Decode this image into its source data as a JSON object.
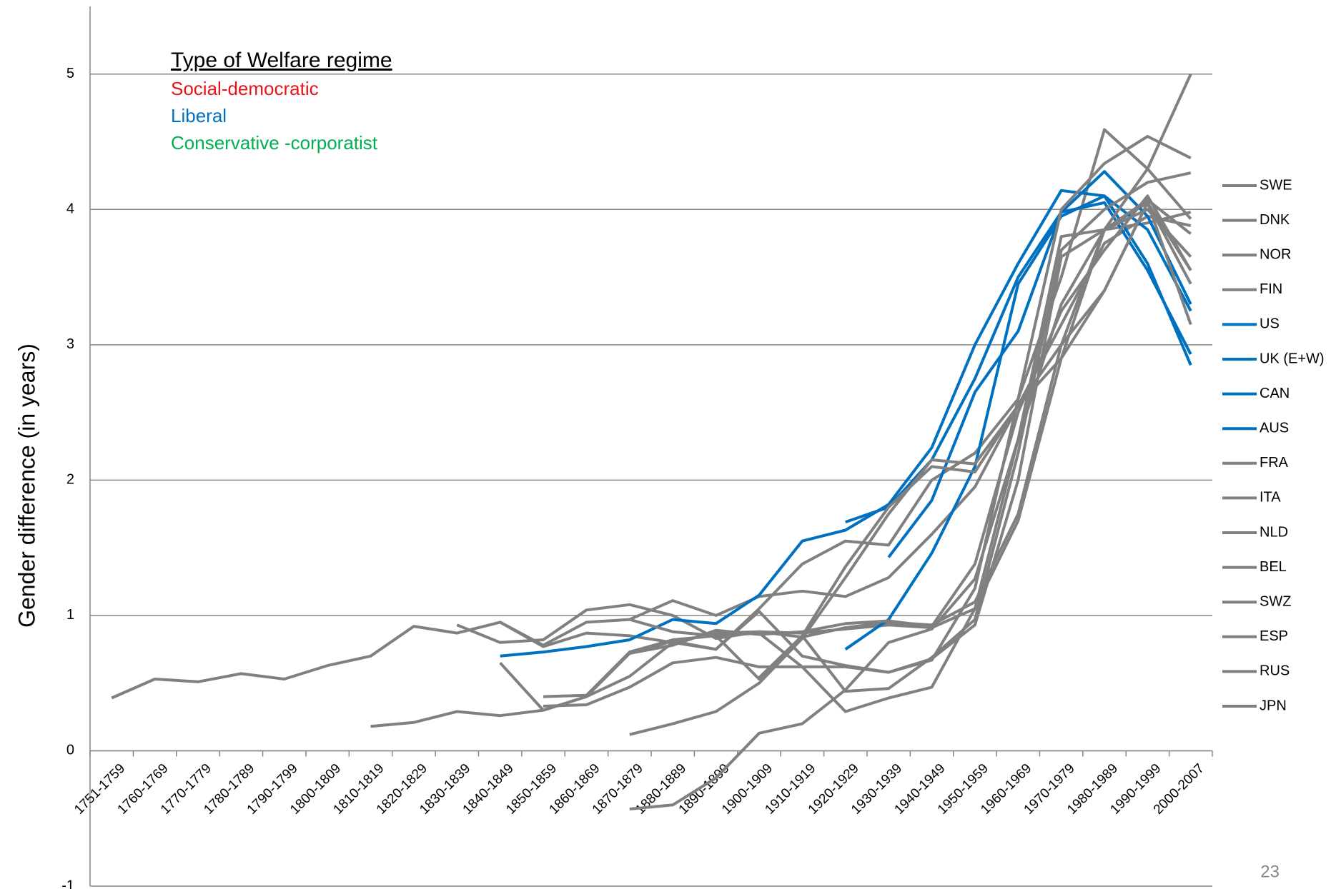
{
  "chart_data": {
    "type": "line",
    "y_label": "Gender difference (in years)",
    "legend_title": "Type of Welfare regime",
    "regimes": [
      {
        "name": "Social-democratic",
        "color": "#e8141b"
      },
      {
        "name": "Liberal",
        "color": "#0070c0"
      },
      {
        "name": "Conservative -corporatist",
        "color": "#00b050"
      }
    ],
    "page_number": "23",
    "categories": [
      "1751-1759",
      "1760-1769",
      "1770-1779",
      "1780-1789",
      "1790-1799",
      "1800-1809",
      "1810-1819",
      "1820-1829",
      "1830-1839",
      "1840-1849",
      "1850-1859",
      "1860-1869",
      "1870-1879",
      "1880-1889",
      "1890-1899",
      "1900-1909",
      "1910-1919",
      "1920-1929",
      "1930-1939",
      "1940-1949",
      "1950-1959",
      "1960-1969",
      "1970-1979",
      "1980-1989",
      "1990-1999",
      "2000-2007"
    ],
    "ylim": [
      -1,
      5.5
    ],
    "yticks": [
      -1,
      0,
      1,
      2,
      3,
      4,
      5
    ],
    "grid": true,
    "series": [
      {
        "name": "SWE",
        "color": "#808080",
        "values": [
          0.39,
          0.53,
          0.51,
          0.57,
          0.53,
          0.63,
          0.7,
          0.92,
          0.87,
          0.95,
          0.78,
          0.95,
          0.97,
          1.11,
          1.0,
          1.14,
          1.18,
          1.14,
          1.28,
          1.6,
          1.95,
          2.55,
          3.15,
          3.75,
          3.95,
          3.88
        ]
      },
      {
        "name": "DNK",
        "color": "#808080",
        "values": [
          null,
          null,
          null,
          null,
          null,
          null,
          null,
          null,
          0.93,
          0.8,
          0.82,
          1.04,
          1.08,
          1.0,
          0.83,
          0.88,
          0.87,
          0.9,
          0.93,
          0.91,
          1.05,
          1.7,
          2.9,
          3.85,
          3.9,
          3.98
        ]
      },
      {
        "name": "NOR",
        "color": "#808080",
        "values": [
          null,
          null,
          null,
          null,
          null,
          null,
          null,
          null,
          null,
          0.95,
          0.77,
          0.87,
          0.85,
          0.8,
          0.87,
          0.88,
          0.84,
          0.91,
          0.95,
          0.93,
          1.1,
          1.75,
          3.0,
          3.85,
          4.05,
          3.55
        ]
      },
      {
        "name": "FIN",
        "color": "#808080",
        "values": [
          null,
          null,
          null,
          null,
          null,
          null,
          0.18,
          0.21,
          0.29,
          0.26,
          0.3,
          0.4,
          0.55,
          0.8,
          0.75,
          1.05,
          1.38,
          1.55,
          1.52,
          2.0,
          2.2,
          2.6,
          3.5,
          4.59,
          4.3,
          3.93
        ]
      },
      {
        "name": "US",
        "color": "#0070c0",
        "values": [
          null,
          null,
          null,
          null,
          null,
          null,
          null,
          null,
          null,
          null,
          null,
          null,
          null,
          null,
          null,
          null,
          null,
          1.69,
          1.8,
          2.15,
          2.75,
          3.5,
          3.98,
          4.28,
          3.95,
          3.3
        ]
      },
      {
        "name": "UK (E+W)",
        "color": "#0070c0",
        "values": [
          null,
          null,
          null,
          null,
          null,
          null,
          null,
          null,
          null,
          0.7,
          0.73,
          0.77,
          0.82,
          0.97,
          0.94,
          1.15,
          1.55,
          1.63,
          1.82,
          2.24,
          3.0,
          3.6,
          4.14,
          4.1,
          3.6,
          2.85
        ]
      },
      {
        "name": "CAN",
        "color": "#0070c0",
        "values": [
          null,
          null,
          null,
          null,
          null,
          null,
          null,
          null,
          null,
          null,
          null,
          null,
          null,
          null,
          null,
          null,
          null,
          null,
          1.43,
          1.85,
          2.65,
          3.1,
          3.98,
          4.05,
          3.55,
          2.93
        ]
      },
      {
        "name": "AUS",
        "color": "#0070c0",
        "values": [
          null,
          null,
          null,
          null,
          null,
          null,
          null,
          null,
          null,
          null,
          null,
          null,
          null,
          null,
          null,
          null,
          null,
          0.75,
          0.97,
          1.46,
          2.1,
          3.45,
          3.95,
          4.1,
          3.85,
          3.25
        ]
      },
      {
        "name": "FRA",
        "color": "#808080",
        "values": [
          null,
          null,
          null,
          null,
          null,
          null,
          null,
          null,
          null,
          null,
          0.4,
          0.41,
          0.73,
          0.82,
          0.85,
          0.87,
          0.62,
          0.62,
          0.58,
          0.67,
          1.2,
          2.6,
          4.0,
          4.34,
          4.54,
          4.38
        ]
      },
      {
        "name": "ITA",
        "color": "#808080",
        "values": [
          null,
          null,
          null,
          null,
          null,
          null,
          null,
          null,
          null,
          null,
          0.33,
          0.34,
          0.47,
          0.65,
          0.69,
          0.62,
          0.62,
          0.29,
          0.39,
          0.47,
          1.05,
          2.3,
          3.8,
          3.85,
          4.07,
          3.82
        ]
      },
      {
        "name": "NLD",
        "color": "#808080",
        "values": [
          null,
          null,
          null,
          null,
          null,
          null,
          null,
          null,
          null,
          0.65,
          0.3,
          0.4,
          0.72,
          0.81,
          0.75,
          1.03,
          0.7,
          0.63,
          0.58,
          0.68,
          0.93,
          2.0,
          3.65,
          3.85,
          4.0,
          3.65
        ]
      },
      {
        "name": "BEL",
        "color": "#808080",
        "values": [
          null,
          null,
          null,
          null,
          null,
          null,
          null,
          null,
          null,
          null,
          null,
          null,
          0.97,
          0.88,
          0.85,
          0.53,
          0.85,
          1.36,
          1.8,
          2.1,
          2.06,
          2.55,
          3.0,
          3.4,
          4.05,
          3.45
        ]
      },
      {
        "name": "SWZ",
        "color": "#808080",
        "values": [
          null,
          null,
          null,
          null,
          null,
          null,
          null,
          null,
          null,
          null,
          null,
          null,
          0.72,
          0.78,
          0.89,
          0.86,
          0.88,
          0.94,
          0.96,
          0.92,
          1.38,
          2.5,
          3.25,
          3.7,
          4.1,
          3.55
        ]
      },
      {
        "name": "ESP",
        "color": "#808080",
        "values": [
          null,
          null,
          null,
          null,
          null,
          null,
          null,
          null,
          null,
          null,
          null,
          null,
          0.12,
          0.2,
          0.29,
          0.5,
          0.83,
          1.28,
          1.75,
          2.15,
          2.12,
          2.55,
          2.9,
          3.4,
          4.05,
          3.15
        ]
      },
      {
        "name": "RUS",
        "color": "#808080",
        "values": [
          null,
          null,
          null,
          null,
          null,
          null,
          null,
          null,
          null,
          null,
          null,
          null,
          -0.43,
          -0.4,
          -0.2,
          0.13,
          0.2,
          0.45,
          0.8,
          0.9,
          1.27,
          2.3,
          3.3,
          3.85,
          4.3,
          5.0
        ]
      },
      {
        "name": "JPN",
        "color": "#808080",
        "values": [
          null,
          null,
          null,
          null,
          null,
          null,
          null,
          null,
          null,
          null,
          null,
          null,
          null,
          null,
          null,
          0.54,
          0.85,
          0.44,
          0.46,
          0.69,
          0.97,
          2.2,
          3.7,
          4.0,
          4.2,
          4.27
        ]
      }
    ]
  }
}
